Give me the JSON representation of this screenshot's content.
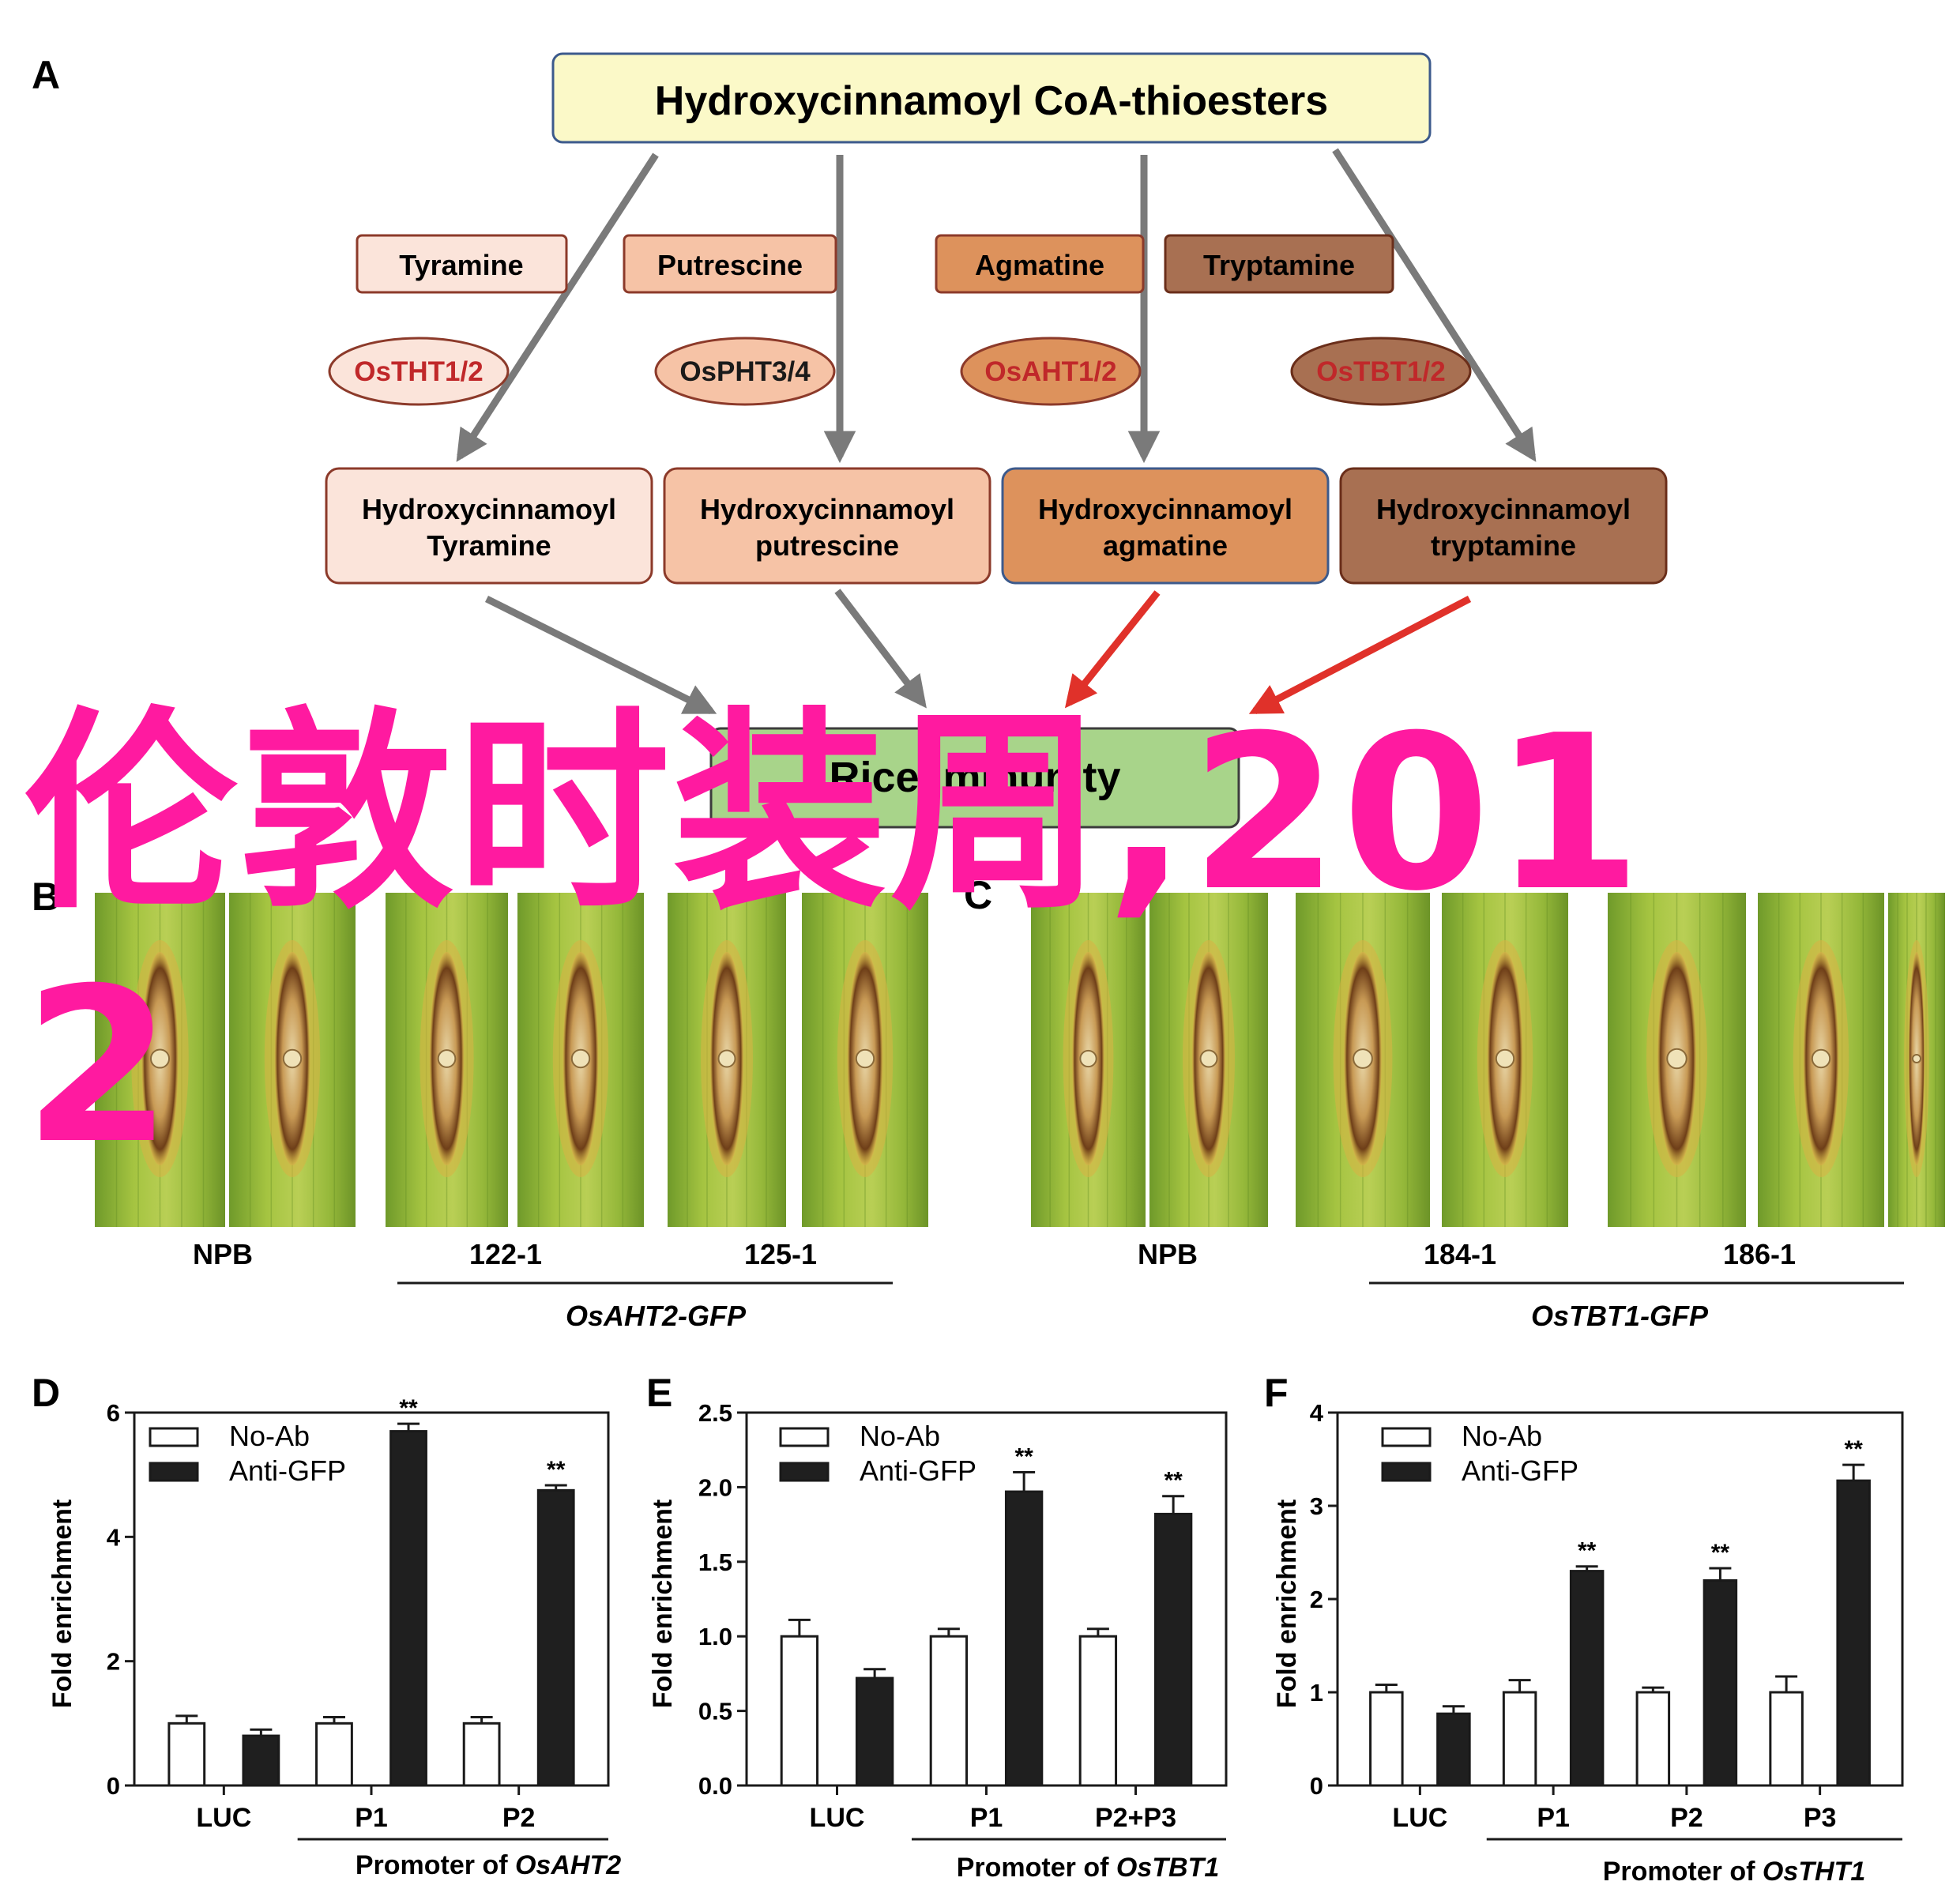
{
  "panelA": {
    "letter": "A",
    "top": "Hydroxycinnamoyl CoA-thioesters",
    "amines": [
      "Tyramine",
      "Putrescine",
      "Agmatine",
      "Tryptamine"
    ],
    "enzymes": [
      "OsTHT1/2",
      "OsPHT3/4",
      "OsAHT1/2",
      "OsTBT1/2"
    ],
    "products": [
      {
        "line1": "Hydroxycinnamoyl",
        "line2": "Tyramine"
      },
      {
        "line1": "Hydroxycinnamoyl",
        "line2": "putrescine"
      },
      {
        "line1": "Hydroxycinnamoyl",
        "line2": "agmatine"
      },
      {
        "line1": "Hydroxycinnamoyl",
        "line2": "tryptamine"
      }
    ],
    "bottom": "Rice immunity",
    "colors": {
      "top_fill": "#fbf9c8",
      "top_border": "#3c5a8c",
      "arrow_gray": "#7a7a7a",
      "arrow_red": "#e0312a",
      "tyramine": "#fbe4da",
      "putrescine": "#f6c3a6",
      "agmatine": "#dd925c",
      "tryptamine": "#a87052",
      "immunity_fill": "#a8d48a"
    }
  },
  "panelB": {
    "letter": "B",
    "labels": [
      "NPB",
      "122-1",
      "125-1"
    ],
    "group": "OsAHT2-GFP"
  },
  "panelC": {
    "letter": "C",
    "labels": [
      "NPB",
      "184-1",
      "186-1"
    ],
    "group": "OsTBT1-GFP"
  },
  "legend": {
    "noab": "No-Ab",
    "antigfp": "Anti-GFP"
  },
  "significance": "**",
  "panelD": {
    "letter": "D",
    "ylabel": "Fold enrichment",
    "promoter_prefix": "Promoter of ",
    "promoter_gene": "OsAHT2",
    "chart_data": {
      "type": "bar",
      "categories": [
        "LUC",
        "P1",
        "P2"
      ],
      "series": [
        {
          "name": "No-Ab",
          "values": [
            1.0,
            1.0,
            1.0
          ],
          "errors": [
            0.12,
            0.1,
            0.1
          ]
        },
        {
          "name": "Anti-GFP",
          "values": [
            0.8,
            5.7,
            4.75
          ],
          "errors": [
            0.1,
            0.12,
            0.08
          ]
        }
      ],
      "significant": [
        false,
        true,
        true
      ],
      "ylim": [
        0,
        6
      ],
      "yticks": [
        "0",
        "2",
        "4",
        "6"
      ]
    }
  },
  "panelE": {
    "letter": "E",
    "ylabel": "Fold enrichment",
    "promoter_prefix": "Promoter of ",
    "promoter_gene": "OsTBT1",
    "chart_data": {
      "type": "bar",
      "categories": [
        "LUC",
        "P1",
        "P2+P3"
      ],
      "series": [
        {
          "name": "No-Ab",
          "values": [
            1.0,
            1.0,
            1.0
          ],
          "errors": [
            0.11,
            0.05,
            0.05
          ]
        },
        {
          "name": "Anti-GFP",
          "values": [
            0.72,
            1.97,
            1.82
          ],
          "errors": [
            0.06,
            0.13,
            0.12
          ]
        }
      ],
      "significant": [
        false,
        true,
        true
      ],
      "ylim": [
        0,
        2.5
      ],
      "yticks": [
        "0.0",
        "0.5",
        "1.0",
        "1.5",
        "2.0",
        "2.5"
      ]
    }
  },
  "panelF": {
    "letter": "F",
    "ylabel": "Fold enrichment",
    "promoter_prefix": "Promoter of ",
    "promoter_gene": "OsTHT1",
    "chart_data": {
      "type": "bar",
      "categories": [
        "LUC",
        "P1",
        "P2",
        "P3"
      ],
      "series": [
        {
          "name": "No-Ab",
          "values": [
            1.0,
            1.0,
            1.0,
            1.0
          ],
          "errors": [
            0.08,
            0.13,
            0.05,
            0.17
          ]
        },
        {
          "name": "Anti-GFP",
          "values": [
            0.77,
            2.3,
            2.2,
            3.27
          ],
          "errors": [
            0.08,
            0.05,
            0.13,
            0.17
          ]
        }
      ],
      "significant": [
        false,
        true,
        true,
        true
      ],
      "ylim": [
        0,
        4
      ],
      "yticks": [
        "0",
        "1",
        "2",
        "3",
        "4"
      ]
    }
  },
  "watermark": "伦敦时装周,2012"
}
